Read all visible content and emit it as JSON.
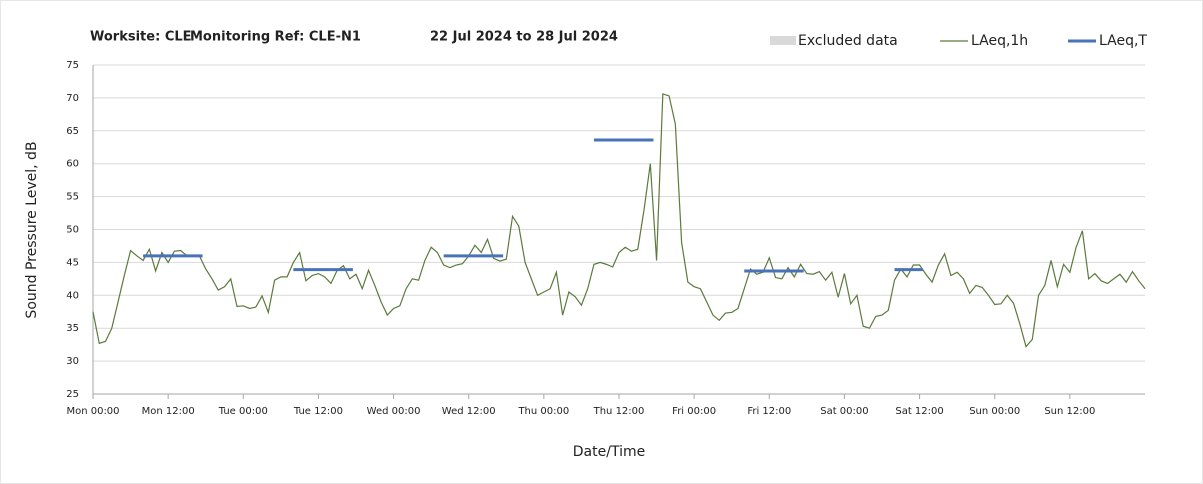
{
  "chart_data": {
    "type": "line",
    "title": [
      "Worksite: CLE",
      "Monitoring Ref: CLE-N1",
      "22 Jul 2024 to 28 Jul 2024"
    ],
    "x_label": "Date/Time",
    "y_label": "Sound Pressure Level, dB",
    "legend_excluded": "Excluded data",
    "excluded_color": "#d9d9d9",
    "xlim": [
      0,
      168
    ],
    "ylim": [
      25,
      75
    ],
    "yticks": [
      25,
      30,
      35,
      40,
      45,
      50,
      55,
      60,
      65,
      70,
      75
    ],
    "xticks": [
      {
        "value": 0,
        "label": "Mon 00:00"
      },
      {
        "value": 12,
        "label": "Mon 12:00"
      },
      {
        "value": 24,
        "label": "Tue 00:00"
      },
      {
        "value": 36,
        "label": "Tue 12:00"
      },
      {
        "value": 48,
        "label": "Wed 00:00"
      },
      {
        "value": 60,
        "label": "Wed 12:00"
      },
      {
        "value": 72,
        "label": "Thu 00:00"
      },
      {
        "value": 84,
        "label": "Thu 12:00"
      },
      {
        "value": 96,
        "label": "Fri 00:00"
      },
      {
        "value": 108,
        "label": "Fri 12:00"
      },
      {
        "value": 120,
        "label": "Sat 00:00"
      },
      {
        "value": 132,
        "label": "Sat 12:00"
      },
      {
        "value": 144,
        "label": "Sun 00:00"
      },
      {
        "value": 156,
        "label": "Sun 12:00"
      }
    ],
    "grid": true,
    "legend": "top-right",
    "series": [
      {
        "name": "LAeq,1h",
        "color": "#5b7a3c",
        "x": [
          0,
          1,
          2,
          3,
          4,
          5,
          6,
          7,
          8,
          9,
          10,
          11,
          12,
          13,
          14,
          15,
          16,
          17,
          18,
          19,
          20,
          21,
          22,
          23,
          24,
          25,
          26,
          27,
          28,
          29,
          30,
          31,
          32,
          33,
          34,
          35,
          36,
          37,
          38,
          39,
          40,
          41,
          42,
          43,
          44,
          45,
          46,
          47,
          48,
          49,
          50,
          51,
          52,
          53,
          54,
          55,
          56,
          57,
          58,
          59,
          60,
          61,
          62,
          63,
          64,
          65,
          66,
          67,
          68,
          69,
          70,
          71,
          72,
          73,
          74,
          75,
          76,
          77,
          78,
          79,
          80,
          81,
          82,
          83,
          84,
          85,
          86,
          87,
          88,
          89,
          90,
          91,
          92,
          93,
          94,
          95,
          96,
          97,
          98,
          99,
          100,
          101,
          102,
          103,
          104,
          105,
          106,
          107,
          108,
          109,
          110,
          111,
          112,
          113,
          114,
          115,
          116,
          117,
          118,
          119,
          120,
          121,
          122,
          123,
          124,
          125,
          126,
          127,
          128,
          129,
          130,
          131,
          132,
          133,
          134,
          135,
          136,
          137,
          138,
          139,
          140,
          141,
          142,
          143,
          144,
          145,
          146,
          147,
          148,
          149,
          150,
          151,
          152,
          153,
          154,
          155,
          156,
          157,
          158,
          159,
          160,
          161,
          162,
          163,
          164,
          165,
          166,
          167,
          168
        ],
        "values": [
          37.5,
          32.7,
          33,
          35,
          39,
          43,
          46.8,
          46,
          45.3,
          47,
          43.7,
          46.5,
          45,
          46.7,
          46.8,
          46,
          46,
          46,
          44,
          42.5,
          40.8,
          41.3,
          42.5,
          38.3,
          38.4,
          38,
          38.2,
          39.9,
          37.4,
          42.3,
          42.8,
          42.8,
          45,
          46.5,
          42.2,
          43,
          43.3,
          42.8,
          41.8,
          43.8,
          44.5,
          42.5,
          43.2,
          41,
          43.8,
          41.5,
          39,
          37,
          38,
          38.4,
          41,
          42.5,
          42.3,
          45.3,
          47.3,
          46.5,
          44.6,
          44.2,
          44.6,
          44.8,
          46,
          47.6,
          46.5,
          48.5,
          45.6,
          45.2,
          45.5,
          52,
          50.5,
          45,
          42.5,
          40,
          40.5,
          41,
          43.5,
          37,
          40.5,
          39.8,
          38.5,
          41,
          44.7,
          45,
          44.7,
          44.3,
          46.5,
          47.3,
          46.7,
          47,
          53,
          60,
          45.3,
          70.6,
          70.3,
          66,
          48,
          42,
          41.3,
          41,
          39,
          37,
          36.2,
          37.3,
          37.4,
          38,
          41,
          44,
          43.2,
          43.5,
          45.7,
          42.7,
          42.5,
          44.2,
          42.8,
          44.7,
          43.3,
          43.2,
          43.6,
          42.3,
          43.5,
          39.7,
          43.3,
          38.7,
          40,
          35.3,
          35,
          36.8,
          37,
          37.7,
          42.3,
          44,
          42.8,
          44.6,
          44.6,
          43.2,
          42,
          44.6,
          46.3,
          43,
          43.5,
          42.5,
          40.3,
          41.5,
          41.2,
          40,
          38.6,
          38.7,
          40,
          38.8,
          35.7,
          32.2,
          33.3,
          40,
          41.5,
          45.3,
          41.3,
          44.7,
          43.5,
          47.3,
          49.8,
          42.5,
          43.3,
          42.2,
          41.8,
          42.5,
          43.2,
          42,
          43.6,
          42.2,
          41
        ]
      },
      {
        "name": "LAeq,T",
        "color": "#4a72b8",
        "segments": [
          {
            "x": [
              8,
              17.5
            ],
            "value": 46
          },
          {
            "x": [
              32,
              41.5
            ],
            "value": 43.9
          },
          {
            "x": [
              56,
              65.5
            ],
            "value": 46
          },
          {
            "x": [
              80,
              89.5
            ],
            "value": 63.6
          },
          {
            "x": [
              104,
              113.5
            ],
            "value": 43.7
          },
          {
            "x": [
              128,
              132.5
            ],
            "value": 43.9
          }
        ]
      }
    ]
  }
}
